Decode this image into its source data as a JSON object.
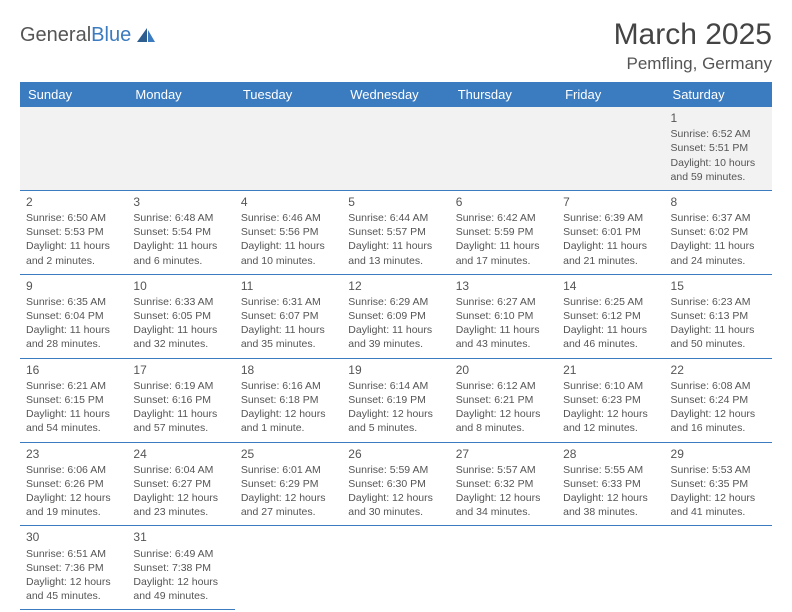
{
  "brand": {
    "g": "General",
    "b": "Blue"
  },
  "title": {
    "month": "March 2025",
    "location": "Pemfling, Germany"
  },
  "colors": {
    "header_bg": "#3b7bbf",
    "header_text": "#ffffff",
    "cell_border": "#3b7bbf",
    "text": "#555555",
    "row0_bg": "#f2f2f2"
  },
  "weekdays": [
    "Sunday",
    "Monday",
    "Tuesday",
    "Wednesday",
    "Thursday",
    "Friday",
    "Saturday"
  ],
  "cells": [
    [
      null,
      null,
      null,
      null,
      null,
      null,
      {
        "n": "1",
        "sr": "6:52 AM",
        "ss": "5:51 PM",
        "dl": "10 hours and 59 minutes."
      }
    ],
    [
      {
        "n": "2",
        "sr": "6:50 AM",
        "ss": "5:53 PM",
        "dl": "11 hours and 2 minutes."
      },
      {
        "n": "3",
        "sr": "6:48 AM",
        "ss": "5:54 PM",
        "dl": "11 hours and 6 minutes."
      },
      {
        "n": "4",
        "sr": "6:46 AM",
        "ss": "5:56 PM",
        "dl": "11 hours and 10 minutes."
      },
      {
        "n": "5",
        "sr": "6:44 AM",
        "ss": "5:57 PM",
        "dl": "11 hours and 13 minutes."
      },
      {
        "n": "6",
        "sr": "6:42 AM",
        "ss": "5:59 PM",
        "dl": "11 hours and 17 minutes."
      },
      {
        "n": "7",
        "sr": "6:39 AM",
        "ss": "6:01 PM",
        "dl": "11 hours and 21 minutes."
      },
      {
        "n": "8",
        "sr": "6:37 AM",
        "ss": "6:02 PM",
        "dl": "11 hours and 24 minutes."
      }
    ],
    [
      {
        "n": "9",
        "sr": "6:35 AM",
        "ss": "6:04 PM",
        "dl": "11 hours and 28 minutes."
      },
      {
        "n": "10",
        "sr": "6:33 AM",
        "ss": "6:05 PM",
        "dl": "11 hours and 32 minutes."
      },
      {
        "n": "11",
        "sr": "6:31 AM",
        "ss": "6:07 PM",
        "dl": "11 hours and 35 minutes."
      },
      {
        "n": "12",
        "sr": "6:29 AM",
        "ss": "6:09 PM",
        "dl": "11 hours and 39 minutes."
      },
      {
        "n": "13",
        "sr": "6:27 AM",
        "ss": "6:10 PM",
        "dl": "11 hours and 43 minutes."
      },
      {
        "n": "14",
        "sr": "6:25 AM",
        "ss": "6:12 PM",
        "dl": "11 hours and 46 minutes."
      },
      {
        "n": "15",
        "sr": "6:23 AM",
        "ss": "6:13 PM",
        "dl": "11 hours and 50 minutes."
      }
    ],
    [
      {
        "n": "16",
        "sr": "6:21 AM",
        "ss": "6:15 PM",
        "dl": "11 hours and 54 minutes."
      },
      {
        "n": "17",
        "sr": "6:19 AM",
        "ss": "6:16 PM",
        "dl": "11 hours and 57 minutes."
      },
      {
        "n": "18",
        "sr": "6:16 AM",
        "ss": "6:18 PM",
        "dl": "12 hours and 1 minute."
      },
      {
        "n": "19",
        "sr": "6:14 AM",
        "ss": "6:19 PM",
        "dl": "12 hours and 5 minutes."
      },
      {
        "n": "20",
        "sr": "6:12 AM",
        "ss": "6:21 PM",
        "dl": "12 hours and 8 minutes."
      },
      {
        "n": "21",
        "sr": "6:10 AM",
        "ss": "6:23 PM",
        "dl": "12 hours and 12 minutes."
      },
      {
        "n": "22",
        "sr": "6:08 AM",
        "ss": "6:24 PM",
        "dl": "12 hours and 16 minutes."
      }
    ],
    [
      {
        "n": "23",
        "sr": "6:06 AM",
        "ss": "6:26 PM",
        "dl": "12 hours and 19 minutes."
      },
      {
        "n": "24",
        "sr": "6:04 AM",
        "ss": "6:27 PM",
        "dl": "12 hours and 23 minutes."
      },
      {
        "n": "25",
        "sr": "6:01 AM",
        "ss": "6:29 PM",
        "dl": "12 hours and 27 minutes."
      },
      {
        "n": "26",
        "sr": "5:59 AM",
        "ss": "6:30 PM",
        "dl": "12 hours and 30 minutes."
      },
      {
        "n": "27",
        "sr": "5:57 AM",
        "ss": "6:32 PM",
        "dl": "12 hours and 34 minutes."
      },
      {
        "n": "28",
        "sr": "5:55 AM",
        "ss": "6:33 PM",
        "dl": "12 hours and 38 minutes."
      },
      {
        "n": "29",
        "sr": "5:53 AM",
        "ss": "6:35 PM",
        "dl": "12 hours and 41 minutes."
      }
    ],
    [
      {
        "n": "30",
        "sr": "6:51 AM",
        "ss": "7:36 PM",
        "dl": "12 hours and 45 minutes."
      },
      {
        "n": "31",
        "sr": "6:49 AM",
        "ss": "7:38 PM",
        "dl": "12 hours and 49 minutes."
      },
      null,
      null,
      null,
      null,
      null
    ]
  ],
  "labels": {
    "sunrise": "Sunrise:",
    "sunset": "Sunset:",
    "daylight": "Daylight:"
  }
}
